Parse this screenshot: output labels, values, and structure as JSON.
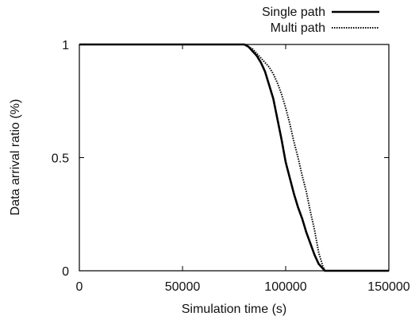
{
  "chart_data": {
    "type": "line",
    "title": "",
    "xlabel": "Simulation time (s)",
    "ylabel": "Data arrival ratio (%)",
    "xlim": [
      0,
      150000
    ],
    "ylim": [
      0,
      1
    ],
    "xticks": [
      0,
      50000,
      100000,
      150000
    ],
    "xtick_labels": [
      "0",
      "50000",
      "100000",
      "150000"
    ],
    "yticks": [
      0,
      0.5,
      1
    ],
    "ytick_labels": [
      "0",
      "0.5",
      "1"
    ],
    "grid": false,
    "legend_position": "top-right",
    "series": [
      {
        "name": "Single path",
        "style": "solid",
        "x": [
          0,
          80000,
          82000,
          84000,
          86000,
          88000,
          90000,
          92000,
          94000,
          96000,
          98000,
          100000,
          102000,
          104000,
          106000,
          108000,
          110000,
          112000,
          114000,
          116000,
          118000,
          119000,
          120000,
          150000
        ],
        "y": [
          1,
          1,
          0.99,
          0.97,
          0.95,
          0.92,
          0.88,
          0.82,
          0.76,
          0.67,
          0.58,
          0.48,
          0.41,
          0.34,
          0.28,
          0.23,
          0.17,
          0.12,
          0.07,
          0.03,
          0.01,
          0,
          0,
          0
        ]
      },
      {
        "name": "Multi path",
        "style": "dotted",
        "x": [
          0,
          80000,
          82000,
          84000,
          86000,
          88000,
          90000,
          92000,
          94000,
          96000,
          98000,
          100000,
          102000,
          104000,
          106000,
          108000,
          110000,
          112000,
          114000,
          116000,
          118000,
          119000,
          120000,
          150000
        ],
        "y": [
          1,
          1,
          0.99,
          0.98,
          0.96,
          0.94,
          0.92,
          0.9,
          0.87,
          0.83,
          0.78,
          0.72,
          0.65,
          0.57,
          0.5,
          0.42,
          0.35,
          0.26,
          0.18,
          0.08,
          0.02,
          0,
          0,
          0
        ]
      }
    ]
  }
}
